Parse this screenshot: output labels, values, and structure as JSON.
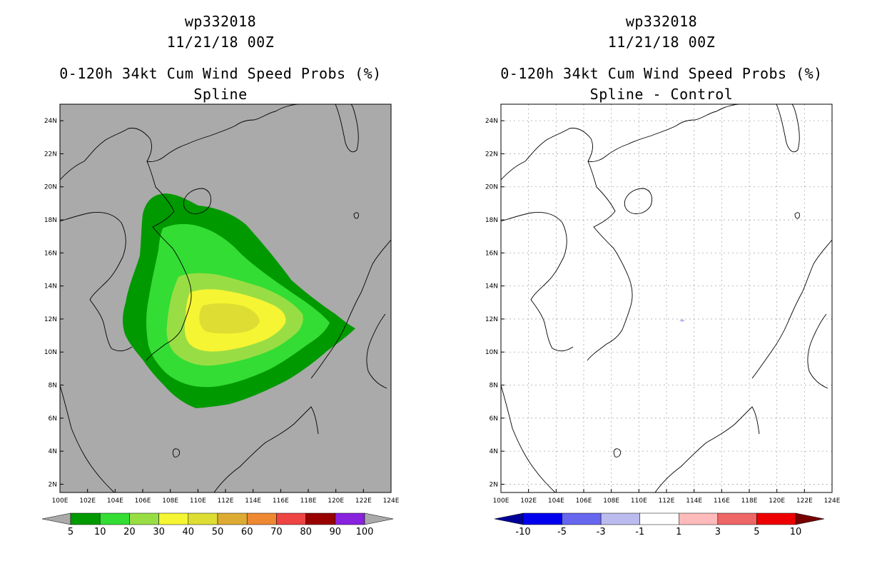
{
  "panels": [
    {
      "storm_id": "wp332018",
      "datetime": "11/21/18 00Z",
      "product": "0-120h 34kt Cum Wind Speed Probs (%)",
      "subtitle": "Spline",
      "background_color": "#aaaaaa",
      "colorbar": {
        "colors": [
          "#009900",
          "#33dd33",
          "#99dd44",
          "#f5f533",
          "#dddd33",
          "#ddaa33",
          "#ee8833",
          "#ee4444",
          "#990000",
          "#8822dd"
        ],
        "under_color": "#aaaaaa",
        "over_color": "#aaaaaa",
        "labels": [
          "5",
          "10",
          "20",
          "30",
          "40",
          "50",
          "60",
          "70",
          "80",
          "90",
          "100"
        ]
      }
    },
    {
      "storm_id": "wp332018",
      "datetime": "11/21/18 00Z",
      "product": "0-120h 34kt Cum Wind Speed Probs (%)",
      "subtitle": "Spline - Control",
      "background_color": "#ffffff",
      "colorbar": {
        "colors": [
          "#0000ee",
          "#6666ee",
          "#bbbbee",
          "#ffffff",
          "#ffbbbb",
          "#ee6666",
          "#ee0000"
        ],
        "under_color": "#000099",
        "over_color": "#770000",
        "labels": [
          "-10",
          "-5",
          "-3",
          "-1",
          "1",
          "3",
          "5",
          "10"
        ]
      }
    }
  ],
  "axes": {
    "lon_labels": [
      "100E",
      "102E",
      "104E",
      "106E",
      "108E",
      "110E",
      "112E",
      "114E",
      "116E",
      "118E",
      "120E",
      "122E",
      "124E"
    ],
    "lat_labels": [
      "2N",
      "4N",
      "6N",
      "8N",
      "10N",
      "12N",
      "14N",
      "16N",
      "18N",
      "20N",
      "22N",
      "24N"
    ]
  },
  "probability_contours": [
    {
      "level": "5",
      "color": "#009900"
    },
    {
      "level": "10",
      "color": "#33dd33"
    },
    {
      "level": "20",
      "color": "#99dd44"
    },
    {
      "level": "30",
      "color": "#f5f533"
    },
    {
      "level": "40",
      "color": "#dddd33"
    }
  ]
}
